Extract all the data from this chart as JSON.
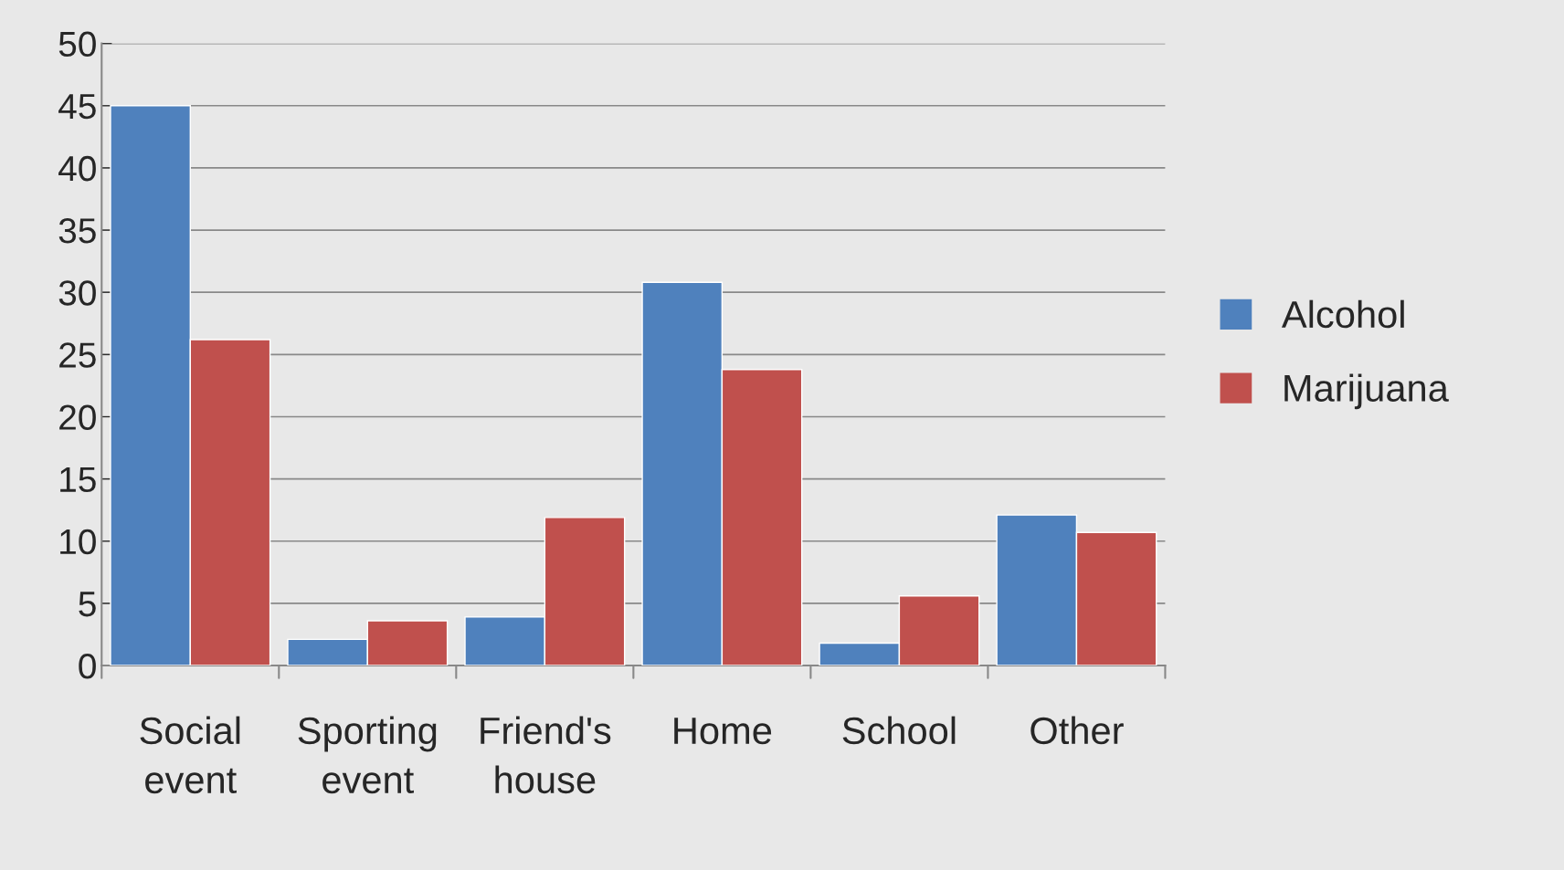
{
  "chart_data": {
    "type": "bar",
    "categories": [
      "Social\nevent",
      "Sporting\nevent",
      "Friend's\nhouse",
      "Home",
      "School",
      "Other"
    ],
    "series": [
      {
        "name": "Alcohol",
        "color": "#4f81bd",
        "values": [
          45,
          2.1,
          3.9,
          30.8,
          1.8,
          12.1
        ]
      },
      {
        "name": "Marijuana",
        "color": "#c0504d",
        "values": [
          26.2,
          3.6,
          11.9,
          23.8,
          5.6,
          10.7
        ]
      }
    ],
    "ylim": [
      0,
      50
    ],
    "yticks": [
      0,
      5,
      10,
      15,
      20,
      25,
      30,
      35,
      40,
      45,
      50
    ],
    "grid": "y",
    "legend": "right"
  }
}
